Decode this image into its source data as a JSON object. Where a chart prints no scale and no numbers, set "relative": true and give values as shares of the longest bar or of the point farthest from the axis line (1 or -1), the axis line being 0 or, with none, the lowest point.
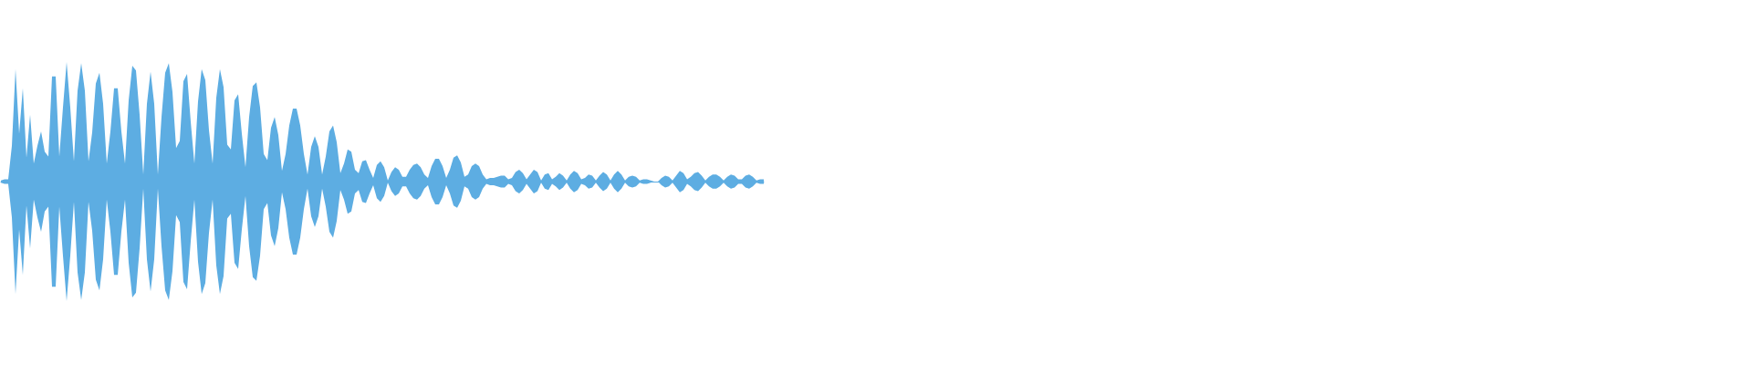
{
  "chart_data": {
    "type": "area",
    "relative": true,
    "tick_labels": false,
    "categories": [
      null,
      null,
      null,
      null,
      null,
      null,
      null,
      null,
      null,
      null,
      null,
      null,
      null,
      null,
      null,
      null,
      null,
      null,
      null,
      null,
      null,
      null,
      null,
      null,
      null,
      null,
      null,
      null,
      null,
      null,
      null,
      null,
      null,
      null,
      null,
      null,
      null,
      null,
      null,
      null,
      null,
      null,
      null,
      null,
      null,
      null,
      null,
      null,
      null,
      null,
      null,
      null,
      null,
      null,
      null,
      null,
      null,
      null,
      null,
      null,
      null,
      null,
      null,
      null,
      null,
      null,
      null,
      null,
      null,
      null,
      null,
      null,
      null,
      null,
      null,
      null,
      null,
      null,
      null,
      null,
      null,
      null,
      null,
      null,
      null,
      null,
      null,
      null,
      null,
      null,
      null,
      null,
      null,
      null,
      null,
      null,
      null,
      null,
      null,
      null,
      null,
      null,
      null,
      null,
      null,
      null,
      null,
      null,
      null,
      null,
      null,
      null,
      null,
      null,
      null,
      null,
      null,
      null,
      null,
      null,
      null,
      null,
      null,
      null,
      null,
      null,
      null,
      null,
      null,
      null,
      null,
      null,
      null,
      null,
      null,
      null,
      null,
      null,
      null,
      null,
      null,
      null,
      null,
      null,
      null,
      null,
      null,
      null,
      null,
      null,
      null,
      null,
      null,
      null,
      null,
      null,
      null,
      null,
      null,
      null,
      null,
      null,
      null,
      null,
      null,
      null,
      null,
      null,
      null,
      null,
      null,
      null,
      null,
      null,
      null,
      null,
      null,
      null,
      null,
      null,
      null,
      null,
      null,
      null,
      null,
      null,
      null,
      null,
      null,
      null,
      null,
      null,
      null,
      null,
      null,
      null,
      null,
      null,
      null,
      null,
      null,
      null,
      null,
      null,
      null,
      null,
      null,
      null,
      null,
      null
    ],
    "series": [
      {
        "color": "#5dade2",
        "values": [
          0.01,
          0.02,
          0.02,
          0.3,
          0.94,
          0.4,
          0.78,
          0.2,
          0.56,
          0.15,
          0.3,
          0.42,
          0.25,
          0.21,
          0.88,
          0.88,
          0.21,
          0.62,
          1,
          0.62,
          0.17,
          0.76,
          0.99,
          0.76,
          0.17,
          0.41,
          0.82,
          0.91,
          0.65,
          0.15,
          0.42,
          0.78,
          0.78,
          0.42,
          0.15,
          0.68,
          0.97,
          0.93,
          0.56,
          0.06,
          0.65,
          0.92,
          0.65,
          0.06,
          0.54,
          0.91,
          0.99,
          0.75,
          0.28,
          0.34,
          0.84,
          0.9,
          0.5,
          0.15,
          0.67,
          0.94,
          0.85,
          0.43,
          0.15,
          0.7,
          0.94,
          0.79,
          0.31,
          0.27,
          0.68,
          0.73,
          0.4,
          0.12,
          0.54,
          0.8,
          0.83,
          0.62,
          0.23,
          0.18,
          0.45,
          0.54,
          0.39,
          0.09,
          0.23,
          0.47,
          0.61,
          0.61,
          0.47,
          0.23,
          0.06,
          0.29,
          0.38,
          0.29,
          0.06,
          0.21,
          0.42,
          0.47,
          0.33,
          0.07,
          0.15,
          0.27,
          0.25,
          0.1,
          0.07,
          0.17,
          0.18,
          0.1,
          0.03,
          0.14,
          0.17,
          0.12,
          0.01,
          0.08,
          0.12,
          0.1,
          0.04,
          0.04,
          0.1,
          0.14,
          0.15,
          0.12,
          0.06,
          0.03,
          0.13,
          0.19,
          0.19,
          0.13,
          0.03,
          0.1,
          0.2,
          0.22,
          0.16,
          0.04,
          0.06,
          0.13,
          0.15,
          0.13,
          0.06,
          0.02,
          0.03,
          0.03,
          0.04,
          0.05,
          0.05,
          0.02,
          0.03,
          0.08,
          0.1,
          0.07,
          0.02,
          0.06,
          0.1,
          0.08,
          0.01,
          0.06,
          0.07,
          0.02,
          0.04,
          0.07,
          0.05,
          0.01,
          0.06,
          0.09,
          0.07,
          0.02,
          0.03,
          0.06,
          0.05,
          0.01,
          0.05,
          0.08,
          0.06,
          0.01,
          0.06,
          0.09,
          0.06,
          0.01,
          0.04,
          0.05,
          0.04,
          0.01,
          0.02,
          0.02,
          0.01,
          0,
          0,
          0.03,
          0.05,
          0.04,
          0.01,
          0.05,
          0.09,
          0.07,
          0.02,
          0.04,
          0.07,
          0.08,
          0.05,
          0.01,
          0.04,
          0.06,
          0.06,
          0.04,
          0.01,
          0.04,
          0.06,
          0.05,
          0.02,
          0.02,
          0.05,
          0.06,
          0.04,
          0.01,
          0.02,
          0.02
        ]
      },
      {
        "color": "#5dade2",
        "values": [
          -0.01,
          -0.02,
          -0.02,
          -0.3,
          -0.94,
          -0.4,
          -0.78,
          -0.2,
          -0.56,
          -0.15,
          -0.3,
          -0.42,
          -0.25,
          -0.21,
          -0.88,
          -0.88,
          -0.21,
          -0.62,
          -1,
          -0.62,
          -0.17,
          -0.76,
          -0.99,
          -0.76,
          -0.17,
          -0.41,
          -0.82,
          -0.91,
          -0.65,
          -0.15,
          -0.42,
          -0.78,
          -0.78,
          -0.42,
          -0.15,
          -0.68,
          -0.97,
          -0.93,
          -0.56,
          -0.06,
          -0.65,
          -0.92,
          -0.65,
          -0.06,
          -0.54,
          -0.91,
          -0.99,
          -0.75,
          -0.28,
          -0.34,
          -0.84,
          -0.9,
          -0.5,
          -0.15,
          -0.67,
          -0.94,
          -0.85,
          -0.43,
          -0.15,
          -0.7,
          -0.94,
          -0.79,
          -0.31,
          -0.27,
          -0.68,
          -0.73,
          -0.4,
          -0.12,
          -0.54,
          -0.8,
          -0.83,
          -0.62,
          -0.23,
          -0.18,
          -0.45,
          -0.54,
          -0.39,
          -0.09,
          -0.23,
          -0.47,
          -0.61,
          -0.61,
          -0.47,
          -0.23,
          -0.06,
          -0.29,
          -0.38,
          -0.29,
          -0.06,
          -0.21,
          -0.42,
          -0.47,
          -0.33,
          -0.07,
          -0.15,
          -0.27,
          -0.25,
          -0.1,
          -0.07,
          -0.17,
          -0.18,
          -0.1,
          -0.03,
          -0.14,
          -0.17,
          -0.12,
          -0.01,
          -0.08,
          -0.12,
          -0.1,
          -0.04,
          -0.04,
          -0.1,
          -0.14,
          -0.15,
          -0.12,
          -0.06,
          -0.03,
          -0.13,
          -0.19,
          -0.19,
          -0.13,
          -0.03,
          -0.1,
          -0.2,
          -0.22,
          -0.16,
          -0.04,
          -0.06,
          -0.13,
          -0.15,
          -0.13,
          -0.06,
          -0.02,
          -0.03,
          -0.03,
          -0.04,
          -0.05,
          -0.05,
          -0.02,
          -0.03,
          -0.08,
          -0.1,
          -0.07,
          -0.02,
          -0.06,
          -0.1,
          -0.08,
          -0.01,
          -0.06,
          -0.07,
          -0.02,
          -0.04,
          -0.07,
          -0.05,
          -0.01,
          -0.06,
          -0.09,
          -0.07,
          -0.02,
          -0.03,
          -0.06,
          -0.05,
          -0.01,
          -0.05,
          -0.08,
          -0.06,
          -0.01,
          -0.06,
          -0.09,
          -0.06,
          -0.01,
          -0.04,
          -0.05,
          -0.04,
          -0.01,
          -0.02,
          -0.02,
          -0.01,
          0,
          0,
          -0.03,
          -0.05,
          -0.04,
          -0.01,
          -0.05,
          -0.09,
          -0.07,
          -0.02,
          -0.04,
          -0.07,
          -0.08,
          -0.05,
          -0.01,
          -0.04,
          -0.06,
          -0.06,
          -0.04,
          -0.01,
          -0.04,
          -0.06,
          -0.05,
          -0.02,
          -0.02,
          -0.05,
          -0.06,
          -0.04,
          -0.01,
          -0.02,
          -0.02
        ]
      }
    ]
  }
}
